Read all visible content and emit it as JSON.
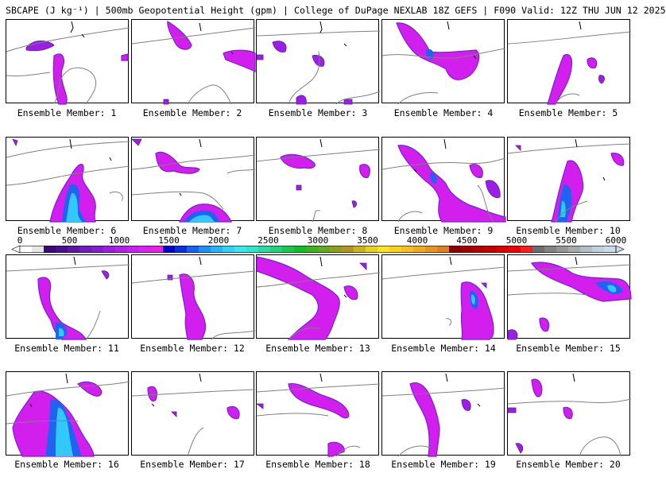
{
  "title": "SBCAPE (J kg⁻¹) | 500mb Geopotential Height (gpm) | College of DuPage NEXLAB 18Z GEFS | F090 Valid: 12Z THU JUN 12 2025",
  "colorbar": {
    "ticks": [
      "0",
      "500",
      "1000",
      "1500",
      "2000",
      "2500",
      "3000",
      "3500",
      "4000",
      "4500",
      "5000",
      "5500",
      "6000"
    ],
    "colors": [
      "#ffffff",
      "#e6e6e6",
      "#3b0a78",
      "#4a0f8e",
      "#5c17a6",
      "#6f1fbf",
      "#821fd1",
      "#9a1fe0",
      "#b11fe8",
      "#c91fef",
      "#dc1ff2",
      "#ea20e6",
      "#0000c8",
      "#0a2ee0",
      "#1464f0",
      "#1e90fa",
      "#28b4fa",
      "#32d2fa",
      "#3ce6f0",
      "#30e6c8",
      "#28dca0",
      "#20d278",
      "#18c850",
      "#10be28",
      "#3cb41e",
      "#64aa1e",
      "#8ca01e",
      "#b4961e",
      "#c8b41e",
      "#e6d21e",
      "#fae61e",
      "#fad21e",
      "#fabe1e",
      "#f0aa1e",
      "#e6961e",
      "#dc821e",
      "#8c0000",
      "#a00000",
      "#b40000",
      "#c80000",
      "#dc0000",
      "#f00000",
      "#ff1e1e",
      "#6e6e6e",
      "#828282",
      "#969696",
      "#aaaaaa",
      "#b4beca",
      "#bed2de",
      "#c8dcea"
    ],
    "level_step": 125,
    "max": 6000
  },
  "panels": [
    {
      "label": "Ensemble Member: 1"
    },
    {
      "label": "Ensemble Member: 2"
    },
    {
      "label": "Ensemble Member: 3"
    },
    {
      "label": "Ensemble Member: 4"
    },
    {
      "label": "Ensemble Member: 5"
    },
    {
      "label": "Ensemble Member: 6"
    },
    {
      "label": "Ensemble Member: 7"
    },
    {
      "label": "Ensemble Member: 8"
    },
    {
      "label": "Ensemble Member: 9"
    },
    {
      "label": "Ensemble Member: 10"
    },
    {
      "label": "Ensemble Member: 11"
    },
    {
      "label": "Ensemble Member: 12"
    },
    {
      "label": "Ensemble Member: 13"
    },
    {
      "label": "Ensemble Member: 14"
    },
    {
      "label": "Ensemble Member: 15"
    },
    {
      "label": "Ensemble Member: 16"
    },
    {
      "label": "Ensemble Member: 17"
    },
    {
      "label": "Ensemble Member: 18"
    },
    {
      "label": "Ensemble Member: 19"
    },
    {
      "label": "Ensemble Member: 20"
    }
  ],
  "style": {
    "cape_low": "#9c1fe6",
    "cape_mid": "#d21fee",
    "cape_high_1": "#1e64f0",
    "cape_high_2": "#32c8fa",
    "contour": "#808080",
    "coast": "#000000"
  }
}
